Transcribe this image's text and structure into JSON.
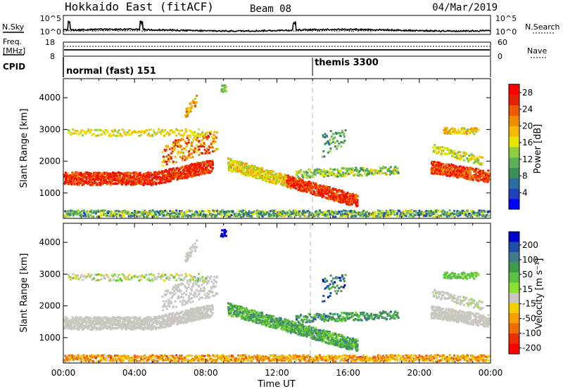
{
  "header": {
    "station": "Hokkaido East (fitACF)",
    "beam": "Beam 08",
    "date": "04/Mar/2019"
  },
  "noise_panel": {
    "left_label": "N.Sky",
    "right_label": "N.Search",
    "left_ticks": [
      "10^5",
      "10^0"
    ],
    "right_ticks": [
      "10^5",
      "10^0"
    ]
  },
  "freq_panel": {
    "left_label_1": "Freq.",
    "left_label_2": "[MHz]",
    "right_label": "Nave",
    "left_ticks": [
      "18",
      "8"
    ],
    "right_ticks": [
      "60",
      "0"
    ]
  },
  "cpid_panel": {
    "label": "CPID",
    "modes": [
      {
        "name": "normal (fast) 151",
        "start_hour": 0
      },
      {
        "name": "themis 3300",
        "start_hour": 14
      }
    ]
  },
  "colors": {
    "power": [
      "#0000ff",
      "#1f3fbf",
      "#2e6e9e",
      "#3d8f5a",
      "#5cb05a",
      "#8ccf3e",
      "#e8e600",
      "#f5b800",
      "#f08c00",
      "#ee5a00",
      "#e52200",
      "#ff0000"
    ],
    "velocity": [
      "#0000cc",
      "#1f4fa6",
      "#3e7a8a",
      "#3f9a4e",
      "#5cc040",
      "#8ce030",
      "#c8c8c0",
      "#f0d000",
      "#f5a000",
      "#f06a00",
      "#e83000",
      "#ff0000"
    ],
    "ground_scatter": "#c8c8c0"
  },
  "chart_data": [
    {
      "type": "heatmap",
      "name": "power",
      "xlabel": "Time UT",
      "ylabel": "Slant Range [km]",
      "xlim": [
        0,
        24
      ],
      "ylim": [
        200,
        4600
      ],
      "x_ticks": [
        "00:00",
        "04:00",
        "08:00",
        "12:00",
        "16:00",
        "20:00",
        "00:00"
      ],
      "y_ticks": [
        1000,
        2000,
        3000,
        4000
      ],
      "colorbar_label": "Power [dB]",
      "colorbar_ticks": [
        4,
        8,
        12,
        16,
        20,
        24,
        28
      ],
      "colorbar_range": [
        0,
        30
      ]
    },
    {
      "type": "heatmap",
      "name": "velocity",
      "xlabel": "Time UT",
      "ylabel": "Slant Range [km]",
      "xlim": [
        0,
        24
      ],
      "ylim": [
        200,
        4600
      ],
      "x_ticks": [
        "00:00",
        "04:00",
        "08:00",
        "12:00",
        "16:00",
        "20:00",
        "00:00"
      ],
      "y_ticks": [
        1000,
        2000,
        3000,
        4000
      ],
      "colorbar_label": "Velocity [m s⁻¹]",
      "colorbar_ticks": [
        200,
        100,
        50,
        15,
        -15,
        -50,
        -100,
        -200
      ]
    }
  ]
}
